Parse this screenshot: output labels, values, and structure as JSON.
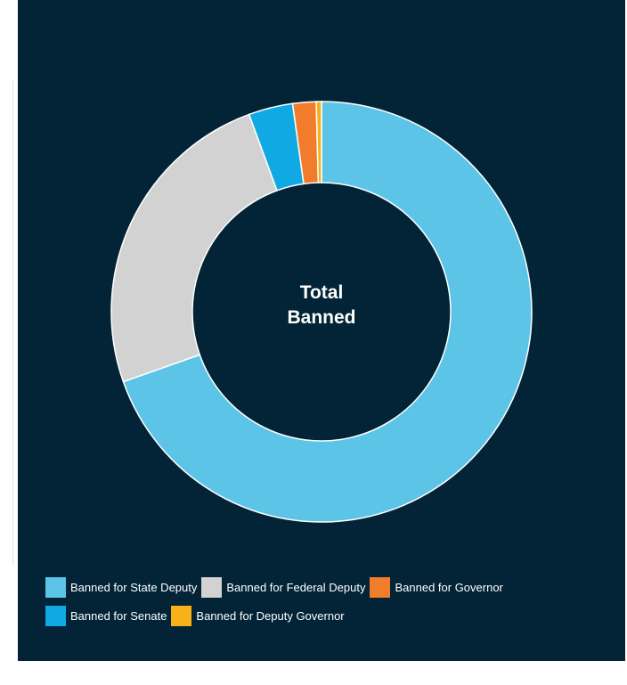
{
  "chart_data": {
    "type": "pie",
    "center_label": [
      "Total",
      "Banned"
    ],
    "categories": [
      "Banned for State Deputy",
      "Banned for Federal Deputy",
      "Banned for Governor",
      "Banned for Senate",
      "Banned for Deputy Governor"
    ],
    "series": [
      {
        "category": "Banned for State Deputy",
        "value": 69.6,
        "color": "#5bc4e7"
      },
      {
        "category": "Banned for Federal Deputy",
        "value": 24.8,
        "color": "#d2d2d2"
      },
      {
        "category": "Banned for Senate",
        "value": 3.4,
        "color": "#10a9e3"
      },
      {
        "category": "Banned for Governor",
        "value": 1.8,
        "color": "#f07c2c"
      },
      {
        "category": "Banned for Deputy Governor",
        "value": 0.4,
        "color": "#f7b219"
      }
    ],
    "legend": {
      "placement": "bottom",
      "items": [
        {
          "label": "Banned for State Deputy",
          "color": "#5bc4e7"
        },
        {
          "label": "Banned for Federal Deputy",
          "color": "#d2d2d2"
        },
        {
          "label": "Banned for Governor",
          "color": "#f07c2c"
        },
        {
          "label": "Banned for Senate",
          "color": "#10a9e3"
        },
        {
          "label": "Banned for Deputy Governor",
          "color": "#f7b219"
        }
      ]
    },
    "background_color": "#022436"
  }
}
